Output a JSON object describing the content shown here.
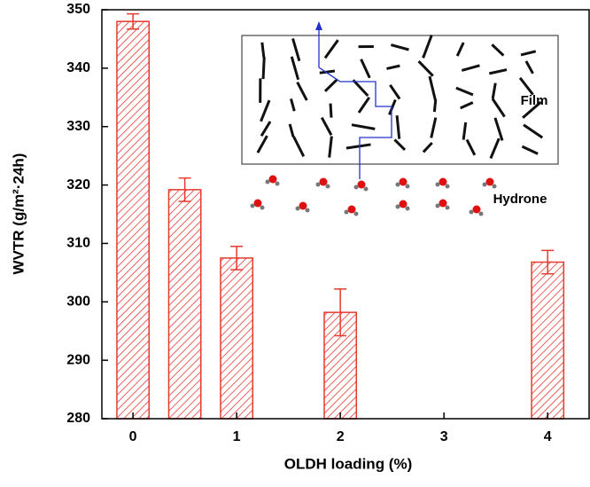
{
  "chart_data": {
    "type": "bar",
    "xlabel": "OLDH loading (%)",
    "ylabel": "WVTR (g/m²·24h)",
    "x": [
      0,
      0.5,
      1,
      2,
      4
    ],
    "series": [
      {
        "color": "#e53a2f",
        "values": [
          348,
          319.2,
          307.5,
          298.2,
          306.8
        ],
        "errors": [
          1.3,
          2.0,
          2.0,
          4.0,
          2.0
        ]
      }
    ],
    "hatch": true,
    "xlim": [
      -0.3,
      4.4
    ],
    "xticks": [
      0,
      1,
      2,
      3,
      4
    ],
    "ylim": [
      280,
      350
    ],
    "yticks": [
      280,
      290,
      300,
      310,
      320,
      330,
      340,
      350
    ],
    "annotations": [
      "Film",
      "Hydrone"
    ]
  }
}
